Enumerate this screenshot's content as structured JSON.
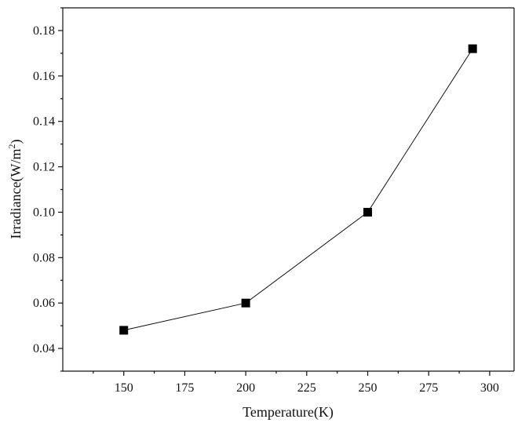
{
  "chart_data": {
    "type": "line",
    "title": "",
    "xlabel": "Temperature(K)",
    "ylabel_main": "Irradiance(W/m",
    "ylabel_sup": "2",
    "ylabel_close": ")",
    "xlim": [
      125,
      310
    ],
    "ylim": [
      0.03,
      0.19
    ],
    "x_ticks": [
      150,
      175,
      200,
      225,
      250,
      275,
      300
    ],
    "x_tick_labels": [
      "150",
      "175",
      "200",
      "225",
      "250",
      "275",
      "300"
    ],
    "y_ticks": [
      0.04,
      0.06,
      0.08,
      0.1,
      0.12,
      0.14,
      0.16,
      0.18
    ],
    "y_tick_labels": [
      "0.04",
      "0.06",
      "0.08",
      "0.10",
      "0.12",
      "0.14",
      "0.16",
      "0.18"
    ],
    "grid": false,
    "series": [
      {
        "x": [
          150,
          200,
          250,
          293
        ],
        "values": [
          0.048,
          0.06,
          0.1,
          0.172
        ],
        "marker": "square",
        "color": "#000000"
      }
    ]
  }
}
